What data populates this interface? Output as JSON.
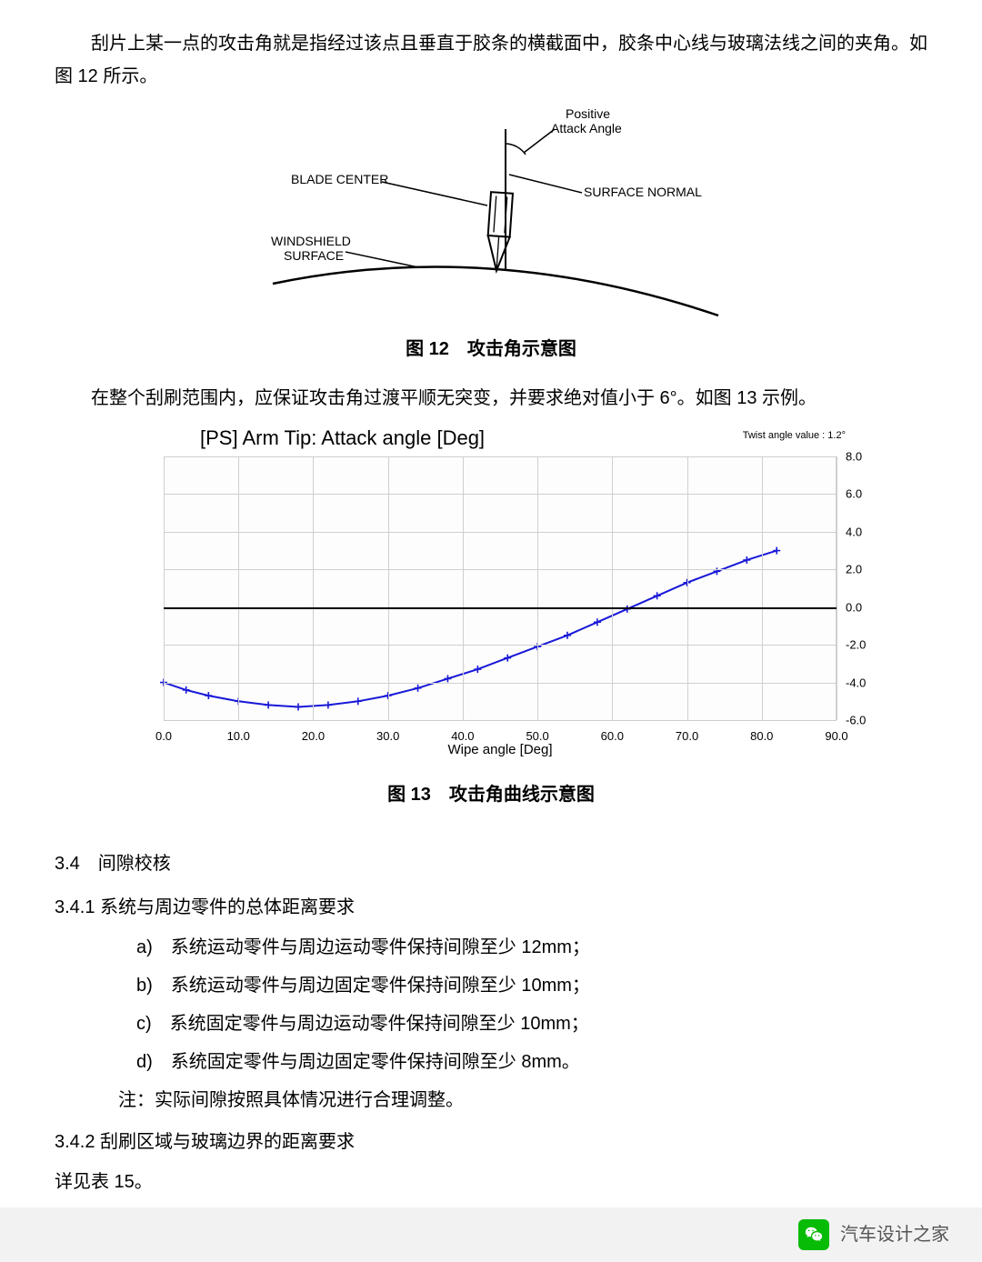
{
  "intro_para": "刮片上某一点的攻击角就是指经过该点且垂直于胶条的横截面中，胶条中心线与玻璃法线之间的夹角。如图 12 所示。",
  "fig12": {
    "labels": {
      "positive1": "Positive",
      "positive2": "Attack Angle",
      "blade_center": "BLADE CENTER",
      "surface_normal": "SURFACE NORMAL",
      "windshield1": "WINDSHIELD",
      "windshield2": "SURFACE"
    },
    "stroke": "#000000"
  },
  "fig12_caption": "图 12　攻击角示意图",
  "mid_para": "在整个刮刷范围内，应保证攻击角过渡平顺无突变，并要求绝对值小于 6°。如图 13 示例。",
  "fig13": {
    "title": "[PS] Arm Tip: Attack angle [Deg]",
    "note": "Twist angle value : 1.2°",
    "x_axis_label": "Wipe angle [Deg]",
    "type": "line",
    "line_color": "#1818d8",
    "line_width": 2,
    "marker": "plus",
    "marker_size": 8,
    "marker_color": "#1818d8",
    "background_color": "#fdfdfd",
    "grid_color": "#cfcfcf",
    "xlim": [
      0,
      90
    ],
    "xtick_step": 10,
    "xticks": [
      "0.0",
      "10.0",
      "20.0",
      "30.0",
      "40.0",
      "50.0",
      "60.0",
      "70.0",
      "80.0",
      "90.0"
    ],
    "ylim": [
      -6,
      8
    ],
    "ytick_step": 2,
    "yticks": [
      "-6.0",
      "-4.0",
      "-2.0",
      "0.0",
      "2.0",
      "4.0",
      "6.0",
      "8.0"
    ],
    "x_values": [
      0,
      3,
      6,
      10,
      14,
      18,
      22,
      26,
      30,
      34,
      38,
      42,
      46,
      50,
      54,
      58,
      62,
      66,
      70,
      74,
      78,
      82
    ],
    "y_values": [
      -4.0,
      -4.4,
      -4.7,
      -5.0,
      -5.2,
      -5.3,
      -5.2,
      -5.0,
      -4.7,
      -4.3,
      -3.8,
      -3.3,
      -2.7,
      -2.1,
      -1.5,
      -0.8,
      -0.1,
      0.6,
      1.3,
      1.9,
      2.5,
      3.0
    ]
  },
  "fig13_caption": "图 13　攻击角曲线示意图",
  "sec34": "3.4　间隙校核",
  "sec341": "3.4.1 系统与周边零件的总体距离要求",
  "items": {
    "a": "a)　系统运动零件与周边运动零件保持间隙至少 12mm；",
    "b": "b)　系统运动零件与周边固定零件保持间隙至少 10mm；",
    "c": "c)　系统固定零件与周边运动零件保持间隙至少 10mm；",
    "d": "d)　系统固定零件与周边固定零件保持间隙至少 8mm。"
  },
  "note": "注：实际间隙按照具体情况进行合理调整。",
  "sec342": "3.4.2 刮刷区域与玻璃边界的距离要求",
  "see_table": "详见表 15。",
  "footer": "汽车设计之家"
}
